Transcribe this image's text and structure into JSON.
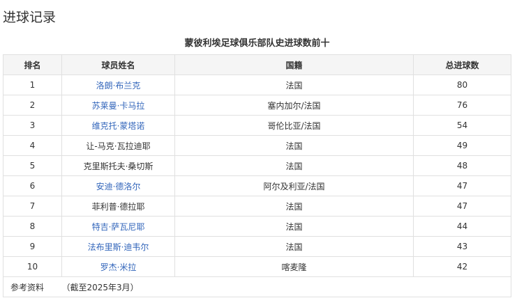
{
  "section_title": "进球记录",
  "caption": "蒙彼利埃足球俱乐部队史进球数前十",
  "headers": [
    "排名",
    "球员姓名",
    "国籍",
    "总进球数"
  ],
  "link_color": "#3366bb",
  "rows": [
    {
      "rank": "1",
      "name": "洛朗·布兰克",
      "link": true,
      "nat": "法国",
      "goals": "80"
    },
    {
      "rank": "2",
      "name": "苏莱曼·卡马拉",
      "link": true,
      "nat": "塞内加尔/法国",
      "goals": "76"
    },
    {
      "rank": "3",
      "name": "维克托·蒙塔诺",
      "link": true,
      "nat": "哥伦比亚/法国",
      "goals": "54"
    },
    {
      "rank": "4",
      "name": "让-马克·瓦拉迪耶",
      "link": false,
      "nat": "法国",
      "goals": "49"
    },
    {
      "rank": "5",
      "name": "克里斯托夫·桑切斯",
      "link": false,
      "nat": "法国",
      "goals": "48"
    },
    {
      "rank": "6",
      "name": "安迪·德洛尔",
      "link": true,
      "nat": "阿尔及利亚/法国",
      "goals": "47"
    },
    {
      "rank": "7",
      "name": "菲利普·德拉耶",
      "link": false,
      "nat": "法国",
      "goals": "47"
    },
    {
      "rank": "8",
      "name": "特吉·萨瓦尼耶",
      "link": true,
      "nat": "法国",
      "goals": "44"
    },
    {
      "rank": "9",
      "name": "法布里斯·迪韦尔",
      "link": true,
      "nat": "法国",
      "goals": "43"
    },
    {
      "rank": "10",
      "name": "罗杰·米拉",
      "link": true,
      "nat": "喀麦隆",
      "goals": "42"
    }
  ],
  "footer": {
    "label": "参考资料",
    "note": "（截至2025年3月）"
  }
}
